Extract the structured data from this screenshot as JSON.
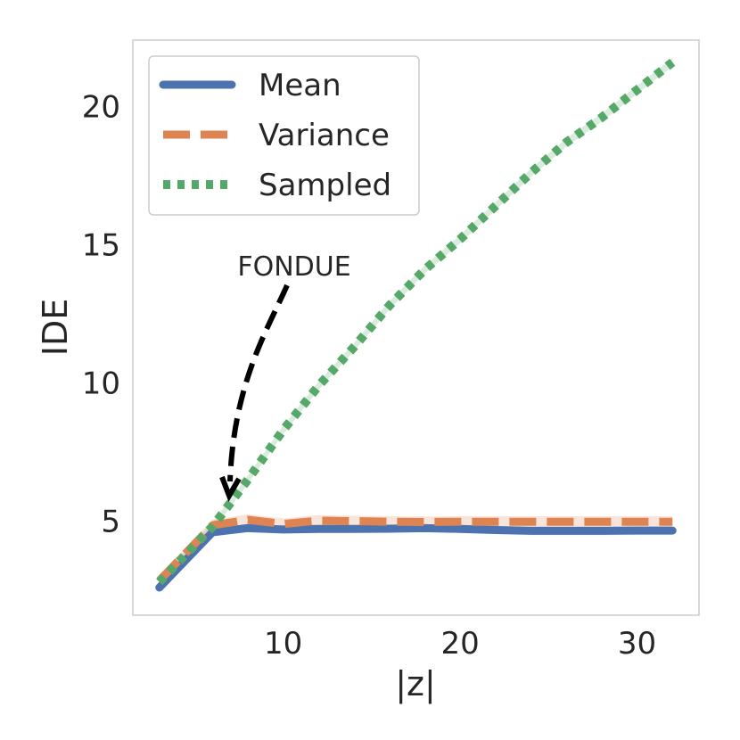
{
  "chart_data": {
    "type": "line",
    "xlabel": "|z|",
    "ylabel": "IDE",
    "xlim": [
      1.5,
      33.5
    ],
    "ylim": [
      1.6,
      22.4
    ],
    "xticks": [
      10,
      20,
      30
    ],
    "yticks": [
      5,
      10,
      15,
      20
    ],
    "grid": false,
    "legend_position": "top-left",
    "series": [
      {
        "name": "Mean",
        "color": "#4c72b0",
        "style": "solid",
        "band": 0.1,
        "x": [
          3,
          6,
          8,
          10,
          12,
          14,
          16,
          18,
          20,
          22,
          24,
          26,
          28,
          30,
          32
        ],
        "y": [
          2.6,
          4.6,
          4.75,
          4.7,
          4.72,
          4.72,
          4.73,
          4.75,
          4.72,
          4.68,
          4.65,
          4.65,
          4.65,
          4.66,
          4.66
        ]
      },
      {
        "name": "Variance",
        "color": "#dd8452",
        "style": "dashed",
        "band": 0.2,
        "x": [
          3,
          6,
          8,
          10,
          12,
          14,
          16,
          18,
          20,
          22,
          24,
          26,
          28,
          30,
          32
        ],
        "y": [
          2.85,
          4.85,
          5.05,
          4.9,
          5.02,
          5.0,
          4.98,
          4.97,
          4.98,
          4.98,
          4.98,
          4.98,
          4.98,
          4.98,
          4.98
        ]
      },
      {
        "name": "Sampled",
        "color": "#55a868",
        "style": "dotted",
        "band": 0.15,
        "x": [
          3,
          6,
          8,
          10,
          12,
          14,
          16,
          18,
          20,
          22,
          24,
          26,
          28,
          30,
          32
        ],
        "y": [
          2.8,
          4.8,
          6.5,
          8.3,
          9.9,
          11.3,
          12.8,
          14.1,
          15.2,
          16.4,
          17.6,
          18.7,
          19.6,
          20.6,
          21.6
        ]
      }
    ],
    "annotation": {
      "text": "FONDUE",
      "target_x": 7,
      "target_y": 5.6
    }
  }
}
